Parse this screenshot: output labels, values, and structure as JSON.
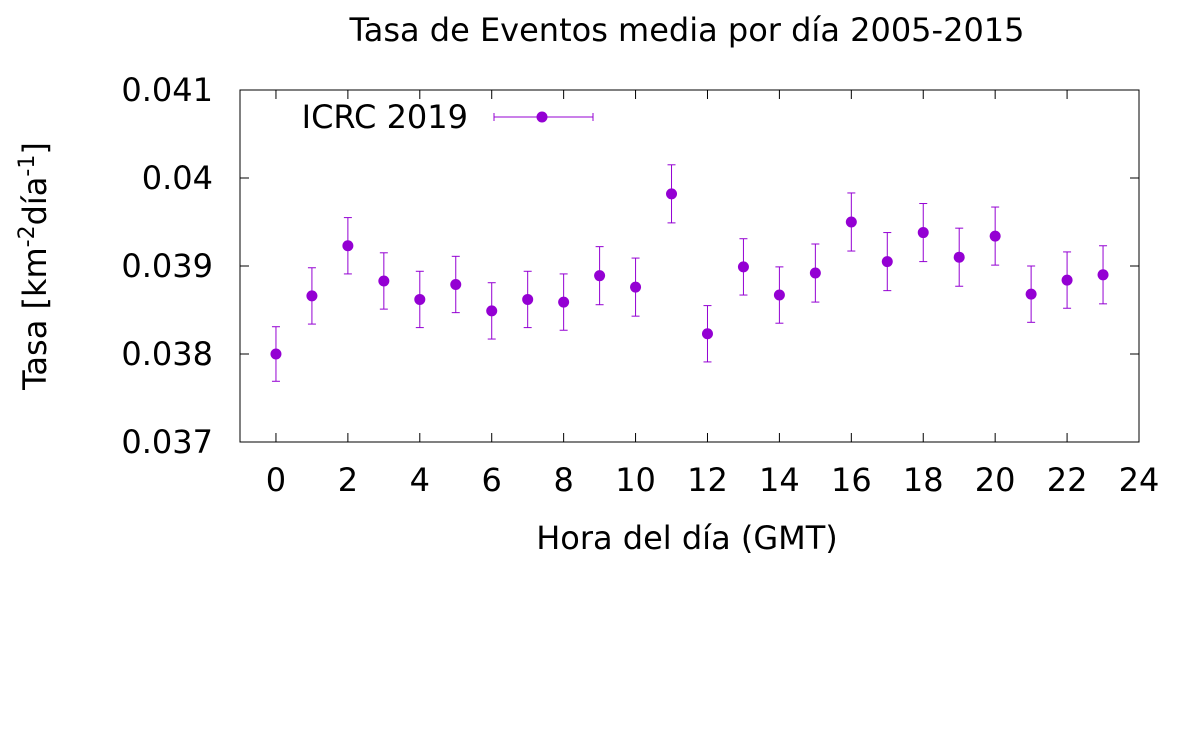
{
  "chart_data": {
    "type": "scatter",
    "title": "Tasa de Eventos media por día  2005-2015",
    "xlabel": "Hora del día (GMT)",
    "ylabel": {
      "prefix": "Tasa [km",
      "sup1": "-2",
      "middle": "día",
      "sup2": "-1",
      "suffix": "]"
    },
    "xlim": [
      -1,
      24
    ],
    "ylim": [
      0.037,
      0.041
    ],
    "xticks": [
      "0",
      "2",
      "4",
      "6",
      "8",
      "10",
      "12",
      "14",
      "16",
      "18",
      "20",
      "22",
      "24"
    ],
    "yticks": [
      "0.037",
      "0.038",
      "0.039",
      "0.04",
      "0.041"
    ],
    "grid": false,
    "legend_position": "top-left",
    "series": [
      {
        "name": "ICRC 2019",
        "color": "#9400d3",
        "marker": "filled-circle",
        "x": [
          0,
          1,
          2,
          3,
          4,
          5,
          6,
          7,
          8,
          9,
          10,
          11,
          12,
          13,
          14,
          15,
          16,
          17,
          18,
          19,
          20,
          21,
          22,
          23
        ],
        "y": [
          0.038,
          0.03866,
          0.03923,
          0.03883,
          0.03862,
          0.03879,
          0.03849,
          0.03862,
          0.03859,
          0.03889,
          0.03876,
          0.03982,
          0.03823,
          0.03899,
          0.03867,
          0.03892,
          0.0395,
          0.03905,
          0.03938,
          0.0391,
          0.03934,
          0.03868,
          0.03884,
          0.0389
        ],
        "yerr": [
          0.00031,
          0.00032,
          0.00032,
          0.00032,
          0.00032,
          0.00032,
          0.00032,
          0.00032,
          0.00032,
          0.00033,
          0.00033,
          0.00033,
          0.00032,
          0.00032,
          0.00032,
          0.00033,
          0.00033,
          0.00033,
          0.00033,
          0.00033,
          0.00033,
          0.00032,
          0.00032,
          0.00033
        ]
      }
    ]
  }
}
